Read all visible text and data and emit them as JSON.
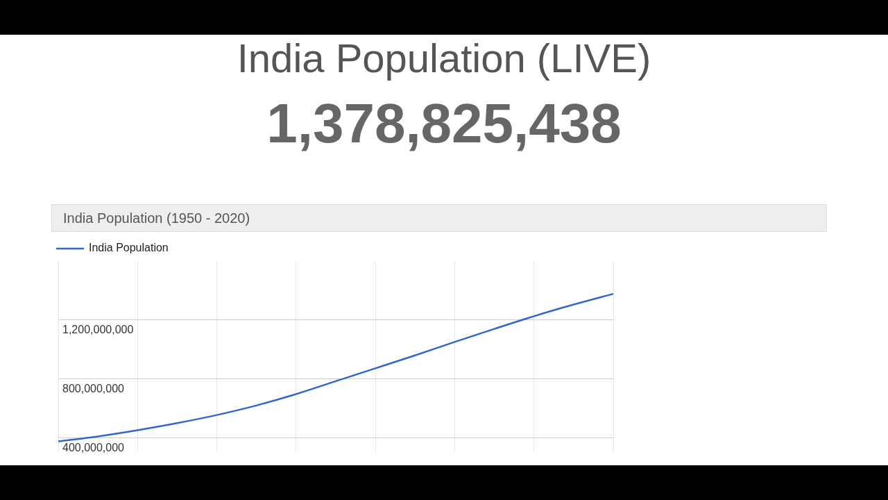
{
  "chart_data": {
    "type": "line",
    "title": "India Population (LIVE)",
    "subtitle": "1,378,825,438",
    "annotations": [
      "India Population (1950 - 2020)"
    ],
    "categories": [
      null,
      null,
      null,
      null,
      null,
      null,
      null,
      null,
      null,
      null,
      null,
      null,
      null,
      null,
      null
    ],
    "series": [
      {
        "name": "India Population",
        "color": "#3366cc",
        "values": [
          376000000,
          410000000,
          452000000,
          500000000,
          555000000,
          620000000,
          697000000,
          785000000,
          872000000,
          960000000,
          1051000000,
          1140000000,
          1226000000,
          1305000000,
          1378000000
        ]
      }
    ],
    "ylim": [
      310000000,
      1600000000
    ],
    "yticks": [
      {
        "value": 400000000,
        "label": "400,000,000"
      },
      {
        "value": 800000000,
        "label": "800,000,000"
      },
      {
        "value": 1200000000,
        "label": "1,200,000,000"
      }
    ],
    "grid": true,
    "legend": "top left",
    "marker": "none",
    "line_style": "solid"
  }
}
